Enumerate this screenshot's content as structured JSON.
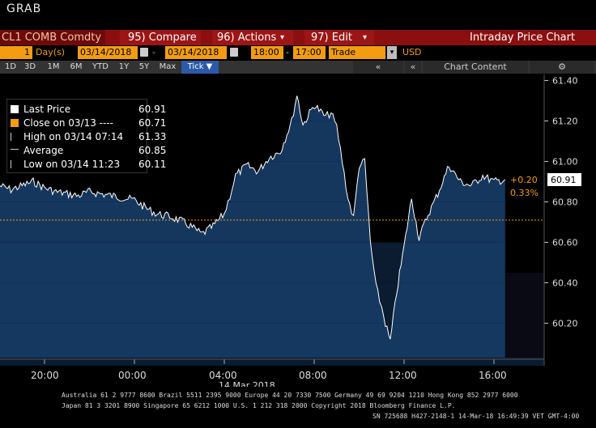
{
  "window": {
    "title": "GRAB"
  },
  "toolbar": {
    "security": "CL1 COMB Comdty",
    "compare_label": "95) Compare",
    "actions_label": "96) Actions",
    "edit_label": "97) Edit",
    "chart_name": "Intraday Price Chart"
  },
  "controls": {
    "period_num": "1",
    "period_unit": "Day(s)",
    "start_date": "03/14/2018",
    "dash": "-",
    "end_date": "03/14/2018",
    "start_time": "18:00",
    "end_time": "17:00",
    "field": "Trade",
    "currency": "USD"
  },
  "range_tabs": [
    "1D",
    "3D",
    "1M",
    "6M",
    "YTD",
    "1Y",
    "5Y",
    "Max",
    "Tick ▼"
  ],
  "chart_content_label": "Chart Content",
  "legend": [
    {
      "label": "Last Price",
      "value": "60.91",
      "color": "#ffffff"
    },
    {
      "label": "Close on 03/13 ----",
      "value": "60.71",
      "color": "#f39c12"
    },
    {
      "label": "High on 03/14 07:14",
      "value": "61.33",
      "color": "#cccccc"
    },
    {
      "label": "Average",
      "value": "60.85",
      "color": "#cccccc"
    },
    {
      "label": "Low on 03/14 11:23",
      "value": "60.11",
      "color": "#cccccc"
    }
  ],
  "annotations": {
    "last_price": "60.91",
    "change": "+0.20",
    "change_pct": "0.33%"
  },
  "chart_data": {
    "type": "line",
    "title": "",
    "xlabel": "14 Mar 2018",
    "ylabel": "",
    "x_ticks": [
      "20:00",
      "00:00",
      "04:00",
      "08:00",
      "12:00",
      "16:00"
    ],
    "y_ticks": [
      "61.40",
      "61.20",
      "61.00",
      "60.80",
      "60.60",
      "60.40",
      "60.20"
    ],
    "ylim": [
      60.03,
      61.43
    ],
    "reference_line": {
      "name": "Close on 03/13",
      "value": 60.71
    },
    "series": [
      {
        "name": "Last Price",
        "x": [
          "18:00",
          "18:30",
          "19:00",
          "19:30",
          "20:00",
          "20:30",
          "21:00",
          "21:30",
          "22:00",
          "22:30",
          "23:00",
          "23:30",
          "00:00",
          "00:30",
          "01:00",
          "01:30",
          "02:00",
          "02:30",
          "03:00",
          "03:30",
          "04:00",
          "04:15",
          "04:30",
          "05:00",
          "05:30",
          "06:00",
          "06:30",
          "07:00",
          "07:14",
          "07:30",
          "08:00",
          "08:30",
          "08:45",
          "09:00",
          "09:15",
          "09:30",
          "09:45",
          "10:00",
          "10:15",
          "10:30",
          "10:45",
          "11:00",
          "11:10",
          "11:23",
          "11:40",
          "12:00",
          "12:20",
          "12:40",
          "13:00",
          "13:30",
          "14:00",
          "14:30",
          "15:00",
          "15:30",
          "16:00",
          "16:30"
        ],
        "values": [
          60.88,
          60.86,
          60.88,
          60.9,
          60.87,
          60.85,
          60.84,
          60.83,
          60.85,
          60.84,
          60.83,
          60.82,
          60.81,
          60.77,
          60.74,
          60.73,
          60.71,
          60.68,
          60.64,
          60.68,
          60.74,
          60.83,
          60.93,
          60.98,
          60.95,
          61.02,
          61.05,
          61.2,
          61.33,
          61.18,
          61.28,
          61.22,
          61.24,
          61.17,
          61.0,
          60.82,
          60.72,
          60.98,
          61.0,
          60.6,
          60.38,
          60.28,
          60.2,
          60.11,
          60.35,
          60.58,
          60.82,
          60.62,
          60.72,
          60.84,
          60.98,
          60.9,
          60.88,
          60.93,
          60.9,
          60.91
        ]
      }
    ]
  },
  "footer": {
    "line1": "Australia 61 2 9777 8600 Brazil 5511 2395 9000 Europe 44 20 7330 7500 Germany 49 69 9204 1210 Hong Kong 852 2977 6000",
    "line2": "Japan 81 3 3201 8900      Singapore 65 6212 1000      U.S. 1 212 318 2000      Copyright 2018 Bloomberg Finance L.P.",
    "line3": "SN 725688 H427-2148-1 14-Mar-18 16:49:39 VET  GMT-4:00"
  },
  "colors": {
    "accent_orange": "#f39c12",
    "toolbar_red": "#8c0f0f",
    "area_fill": "#17365a",
    "tab_blue": "#2b5aa8"
  }
}
